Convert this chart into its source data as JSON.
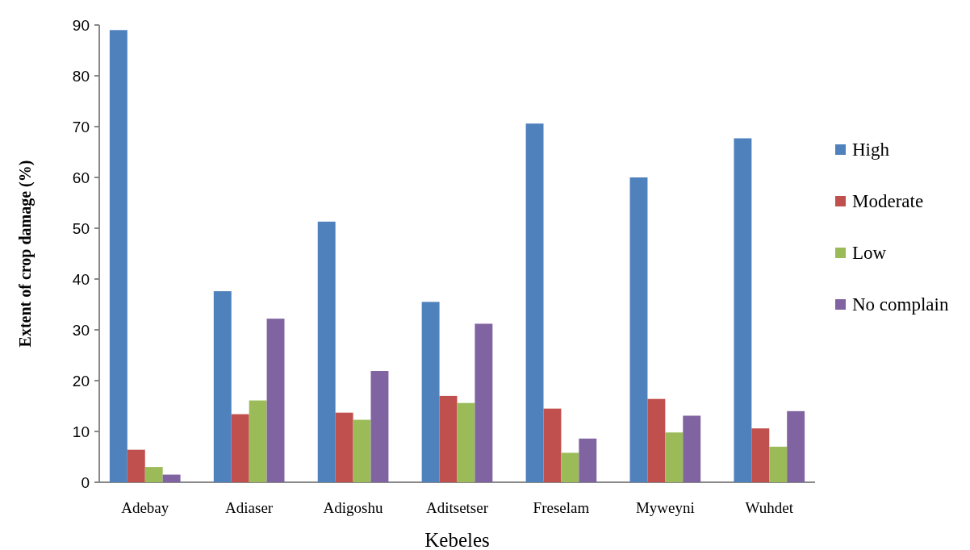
{
  "chart_data": {
    "type": "bar",
    "xlabel": "Kebeles",
    "ylabel": "Extent of crop damage (%)",
    "categories": [
      "Adebay",
      "Adiaser",
      "Adigoshu",
      "Aditsetser",
      "Freselam",
      "Myweyni",
      "Wuhdet"
    ],
    "series": [
      {
        "name": "High",
        "color": "#4f81bd",
        "values": [
          89,
          37.6,
          51.3,
          35.5,
          70.6,
          60,
          67.7
        ]
      },
      {
        "name": "Moderate",
        "color": "#c0504d",
        "values": [
          6.4,
          13.4,
          13.7,
          17,
          14.5,
          16.4,
          10.6
        ]
      },
      {
        "name": "Low",
        "color": "#9bbb59",
        "values": [
          3,
          16.1,
          12.3,
          15.6,
          5.8,
          9.8,
          7
        ]
      },
      {
        "name": "No complain",
        "color": "#8064a2",
        "values": [
          1.5,
          32.2,
          21.9,
          31.2,
          8.6,
          13.1,
          14
        ]
      }
    ],
    "ylim": [
      0,
      90
    ],
    "yticks": [
      0,
      10,
      20,
      30,
      40,
      50,
      60,
      70,
      80,
      90
    ],
    "grid": false,
    "legend": "right"
  }
}
